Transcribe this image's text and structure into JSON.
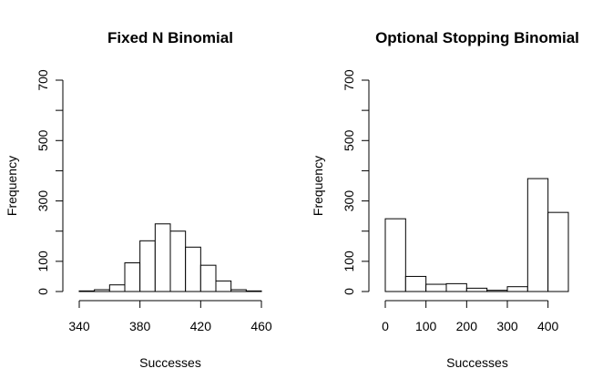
{
  "chart_data": [
    {
      "type": "bar",
      "title": "Fixed N Binomial",
      "xlabel": "Successes",
      "ylabel": "Frequency",
      "bin_edges": [
        340,
        350,
        360,
        370,
        380,
        390,
        400,
        410,
        420,
        430,
        440,
        450,
        460
      ],
      "values": [
        2,
        6,
        22,
        95,
        168,
        224,
        200,
        147,
        87,
        35,
        6,
        2
      ],
      "xticks": [
        340,
        380,
        420,
        460
      ],
      "xlim": [
        340,
        460
      ],
      "yticks": [
        0,
        100,
        300,
        500,
        700
      ],
      "ylim": [
        0,
        700
      ]
    },
    {
      "type": "bar",
      "title": "Optional Stopping Binomial",
      "xlabel": "Successes",
      "ylabel": "Frequency",
      "bin_edges": [
        0,
        50,
        100,
        150,
        200,
        250,
        300,
        350,
        400,
        450
      ],
      "values": [
        241,
        50,
        24,
        26,
        11,
        4,
        16,
        374,
        262
      ],
      "xticks": [
        0,
        100,
        200,
        300,
        400
      ],
      "xlim": [
        0,
        450
      ],
      "yticks": [
        0,
        100,
        300,
        500,
        700
      ],
      "ylim": [
        0,
        700
      ]
    }
  ]
}
